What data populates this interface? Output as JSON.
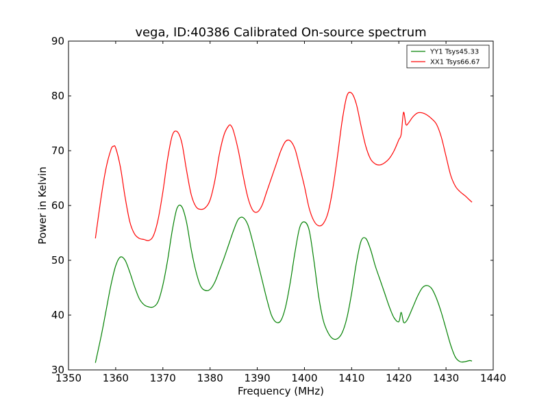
{
  "chart_data": {
    "type": "line",
    "title": "vega, ID:40386 Calibrated On-source spectrum",
    "xlabel": "Frequency (MHz)",
    "ylabel": "Power in Kelvin",
    "xlim": [
      1350,
      1440
    ],
    "ylim": [
      30,
      90
    ],
    "xticks": [
      1350,
      1360,
      1370,
      1380,
      1390,
      1400,
      1410,
      1420,
      1430,
      1440
    ],
    "yticks": [
      30,
      40,
      50,
      60,
      70,
      80,
      90
    ],
    "grid": false,
    "legend": "top-right",
    "series": [
      {
        "name": "YY1 Tsys45.33",
        "color": "#008000",
        "x": [
          1355.7,
          1357,
          1358,
          1359,
          1360,
          1361,
          1362,
          1363,
          1364,
          1365,
          1366,
          1367,
          1368,
          1369,
          1370,
          1371,
          1372,
          1373,
          1374,
          1375,
          1376,
          1377,
          1378,
          1379,
          1380,
          1381,
          1382,
          1383,
          1384,
          1385,
          1386,
          1387,
          1388,
          1389,
          1390,
          1391,
          1392,
          1393,
          1394,
          1395,
          1396,
          1397,
          1398,
          1399,
          1400,
          1401,
          1402,
          1403,
          1404,
          1405,
          1406,
          1407,
          1408,
          1409,
          1410,
          1411,
          1412,
          1413,
          1414,
          1415,
          1416,
          1417,
          1418,
          1419,
          1420,
          1420.5,
          1421,
          1421.5,
          1422,
          1423,
          1424,
          1425,
          1426,
          1427,
          1428,
          1429,
          1430,
          1431,
          1432,
          1433,
          1434,
          1435,
          1435.5
        ],
        "values": [
          31.3,
          36.5,
          41,
          45.5,
          49,
          50.6,
          50,
          47.8,
          45.2,
          43,
          41.9,
          41.5,
          41.5,
          42.5,
          45.5,
          50,
          55.5,
          59.5,
          59.8,
          57,
          52,
          48,
          45.3,
          44.5,
          44.7,
          46,
          48.2,
          50.5,
          53,
          55.5,
          57.5,
          57.8,
          56.5,
          53.5,
          50,
          46.5,
          43,
          40,
          38.7,
          39,
          41.5,
          46,
          51.5,
          56,
          57,
          55.5,
          50,
          43.5,
          39,
          36.8,
          35.7,
          35.7,
          36.8,
          39.5,
          44,
          49.5,
          53.5,
          54,
          52,
          49,
          46.5,
          44,
          41.5,
          39.5,
          38.8,
          40.5,
          38.7,
          38.8,
          39.5,
          41.5,
          43.5,
          45,
          45.4,
          44.8,
          43,
          40.5,
          37.5,
          34.5,
          32.3,
          31.5,
          31.5,
          31.7,
          31.6
        ]
      },
      {
        "name": "XX1 Tsys66.67",
        "color": "#ff0000",
        "x": [
          1355.7,
          1357,
          1358,
          1359,
          1359.5,
          1360,
          1361,
          1362,
          1363,
          1364,
          1365,
          1366,
          1367,
          1368,
          1369,
          1370,
          1371,
          1372,
          1373,
          1374,
          1375,
          1376,
          1377,
          1378,
          1379,
          1380,
          1381,
          1382,
          1383,
          1384,
          1384.5,
          1385,
          1386,
          1387,
          1388,
          1389,
          1390,
          1391,
          1392,
          1393,
          1394,
          1395,
          1396,
          1397,
          1398,
          1399,
          1400,
          1401,
          1402,
          1403,
          1404,
          1405,
          1406,
          1407,
          1408,
          1409,
          1410,
          1411,
          1412,
          1413,
          1414,
          1415,
          1416,
          1417,
          1418,
          1419,
          1420,
          1420.5,
          1421,
          1421.5,
          1422,
          1423,
          1424,
          1425,
          1426,
          1427,
          1428,
          1429,
          1430,
          1431,
          1432,
          1433,
          1434,
          1435,
          1435.5
        ],
        "values": [
          54,
          62,
          67,
          70.2,
          70.8,
          70.5,
          67,
          61.5,
          57,
          54.8,
          54,
          53.8,
          53.6,
          54.5,
          57.5,
          62.5,
          68.5,
          72.8,
          73.5,
          71.5,
          66.5,
          62,
          59.8,
          59.3,
          59.6,
          61,
          64.5,
          69.5,
          73,
          74.6,
          74.5,
          73.5,
          70,
          65.5,
          61.5,
          59.2,
          58.8,
          60,
          62.5,
          65,
          67.5,
          70,
          71.7,
          71.8,
          70.3,
          67,
          63.5,
          59.5,
          57.2,
          56.3,
          56.7,
          58.7,
          63,
          69,
          75.5,
          80,
          80.5,
          78.5,
          74.5,
          70.8,
          68.5,
          67.6,
          67.4,
          67.8,
          68.6,
          70,
          72,
          73,
          77,
          74.8,
          75,
          76.2,
          76.9,
          76.9,
          76.5,
          75.8,
          74.8,
          72.5,
          69,
          65.5,
          63.5,
          62.5,
          61.8,
          61,
          60.6
        ]
      }
    ]
  }
}
